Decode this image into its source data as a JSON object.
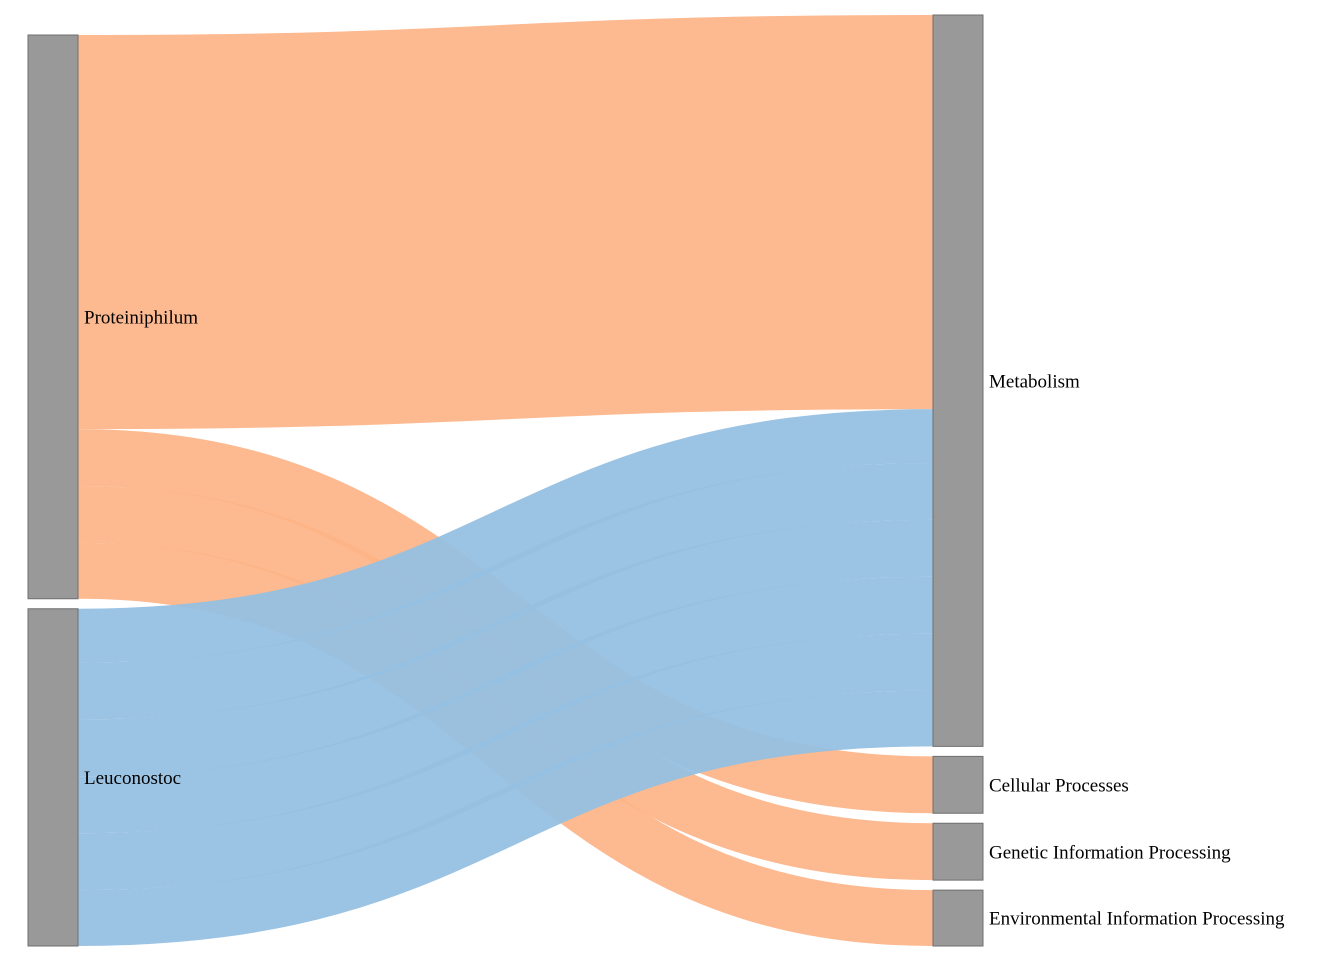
{
  "diagram": {
    "type": "sankey",
    "colors": {
      "node": "#999999",
      "node_stroke": "#6f6f6f",
      "flow_from_proteiniphilum": "#fdb386",
      "flow_from_leuconostoc": "#96c0e1"
    },
    "nodes": [
      {
        "id": "proteiniphilum",
        "label": "Proteiniphilum",
        "column": "source"
      },
      {
        "id": "leuconostoc",
        "label": "Leuconostoc",
        "column": "source"
      },
      {
        "id": "metabolism",
        "label": "Metabolism",
        "column": "target"
      },
      {
        "id": "cellular",
        "label": "Cellular Processes",
        "column": "target"
      },
      {
        "id": "genetic",
        "label": "Genetic Information Processing",
        "column": "target"
      },
      {
        "id": "environmental",
        "label": "Environmental Information Processing",
        "column": "target"
      }
    ],
    "links": [
      {
        "source": "proteiniphilum",
        "target": "metabolism",
        "value": 39.5
      },
      {
        "source": "proteiniphilum",
        "target": "cellular",
        "value": 5.7
      },
      {
        "source": "proteiniphilum",
        "target": "genetic",
        "value": 5.7
      },
      {
        "source": "proteiniphilum",
        "target": "environmental",
        "value": 5.6
      },
      {
        "source": "leuconostoc",
        "target": "metabolism",
        "value": 5.4
      },
      {
        "source": "leuconostoc",
        "target": "metabolism",
        "value": 5.7
      },
      {
        "source": "leuconostoc",
        "target": "metabolism",
        "value": 5.7
      },
      {
        "source": "leuconostoc",
        "target": "metabolism",
        "value": 5.7
      },
      {
        "source": "leuconostoc",
        "target": "metabolism",
        "value": 5.7
      },
      {
        "source": "leuconostoc",
        "target": "metabolism",
        "value": 5.6
      }
    ]
  }
}
